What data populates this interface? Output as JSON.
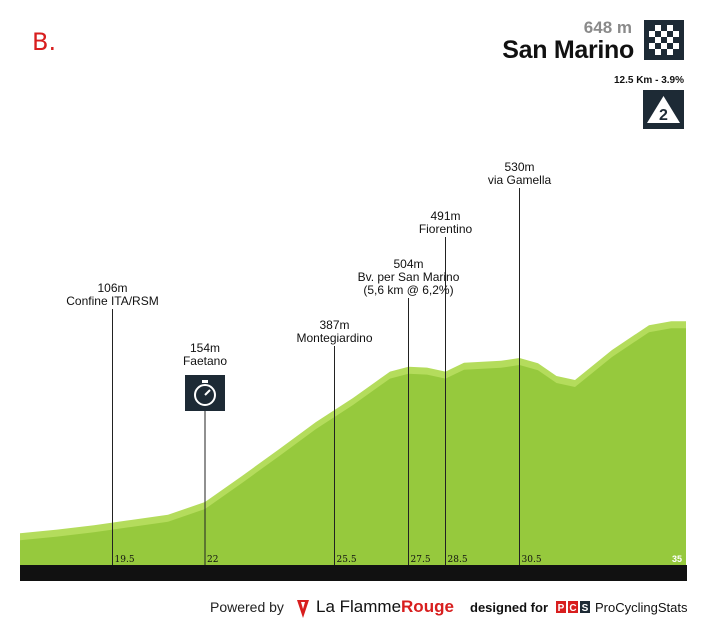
{
  "panel_label": "B.",
  "finish": {
    "altitude": "648 m",
    "name": "San Marino",
    "icon": "checkered-flag-icon"
  },
  "climb": {
    "info": "12.5 Km - 3.9%",
    "category": "2",
    "icon": "mountain-category-icon"
  },
  "footer": {
    "powered_by": "Powered by",
    "brand_part1": "La Flamme",
    "brand_part2": "Rouge",
    "designed_for": "designed for",
    "pcs_logo": "PCS",
    "pcs_name": "ProCyclingStats",
    "brand_color": "#d81e1e"
  },
  "chart_data": {
    "type": "area",
    "xlim": [
      17,
      35
    ],
    "fill_color": "#96c93d",
    "edge_color": "#b4dc5c",
    "baseline_color": "#111111",
    "profile_points": [
      [
        17,
        62
      ],
      [
        18,
        71
      ],
      [
        19,
        82
      ],
      [
        20,
        95
      ],
      [
        21,
        108
      ],
      [
        22,
        140
      ],
      [
        23,
        205
      ],
      [
        24,
        272
      ],
      [
        25,
        340
      ],
      [
        26,
        400
      ],
      [
        27,
        466
      ],
      [
        27.5,
        478
      ],
      [
        28,
        476
      ],
      [
        28.5,
        466
      ],
      [
        29,
        488
      ],
      [
        30,
        493
      ],
      [
        30.5,
        500
      ],
      [
        31,
        487
      ],
      [
        31.5,
        455
      ],
      [
        32,
        445
      ],
      [
        33,
        520
      ],
      [
        34,
        582
      ],
      [
        34.6,
        592
      ],
      [
        35,
        592
      ]
    ],
    "waypoints": [
      {
        "km": 19.5,
        "km_label": "19.5",
        "altitude": "106m",
        "name": "Confine ITA/RSM"
      },
      {
        "km": 22,
        "km_label": "22",
        "altitude": "154m",
        "name": "Faetano",
        "icon": "stopwatch-icon"
      },
      {
        "km": 25.5,
        "km_label": "25.5",
        "altitude": "387m",
        "name": "Montegiardino"
      },
      {
        "km": 27.5,
        "km_label": "27.5",
        "altitude": "504m",
        "name": "Bv. per San Marino",
        "name2": "(5,6 km @ 6,2%)"
      },
      {
        "km": 28.5,
        "km_label": "28.5",
        "altitude": "491m",
        "name": "Fiorentino"
      },
      {
        "km": 30.5,
        "km_label": "30.5",
        "altitude": "530m",
        "name": "via Gamella"
      }
    ],
    "end_km_label": "35"
  }
}
